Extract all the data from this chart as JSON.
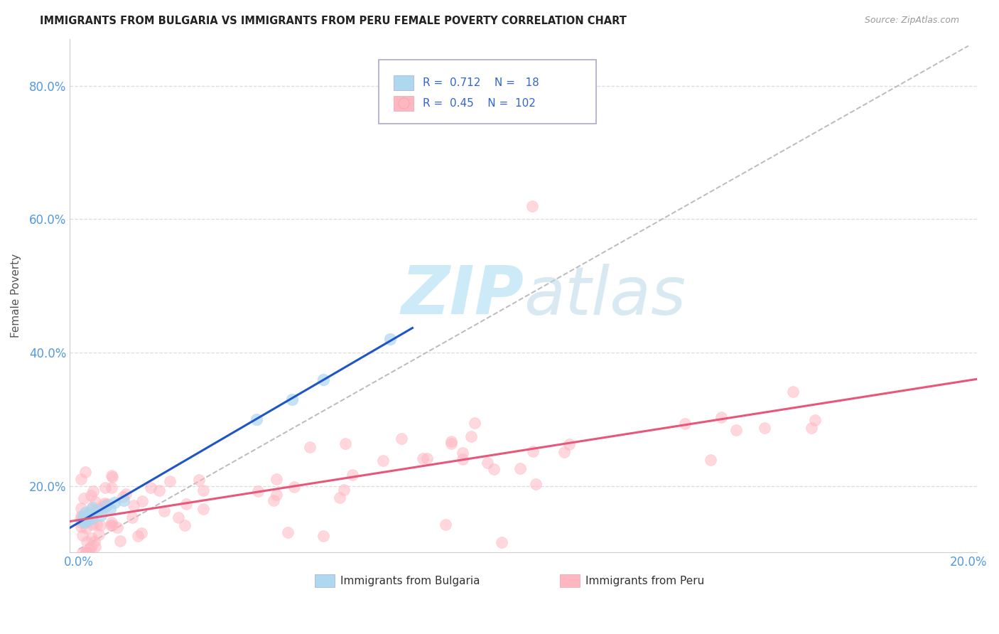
{
  "title": "IMMIGRANTS FROM BULGARIA VS IMMIGRANTS FROM PERU FEMALE POVERTY CORRELATION CHART",
  "source": "Source: ZipAtlas.com",
  "ylabel": "Female Poverty",
  "xlabel_bulgaria": "Immigrants from Bulgaria",
  "xlabel_peru": "Immigrants from Peru",
  "R_bulgaria": 0.712,
  "N_bulgaria": 18,
  "R_peru": 0.45,
  "N_peru": 102,
  "xlim": [
    -0.002,
    0.202
  ],
  "ylim": [
    0.1,
    0.87
  ],
  "yticks": [
    0.2,
    0.4,
    0.6,
    0.8
  ],
  "ytick_labels": [
    "20.0%",
    "40.0%",
    "60.0%",
    "80.0%"
  ],
  "xticks": [
    0.0,
    0.05,
    0.1,
    0.15,
    0.2
  ],
  "xtick_labels": [
    "0.0%",
    "",
    "",
    "",
    "20.0%"
  ],
  "color_bulgaria": "#ADD8F0",
  "color_peru": "#FFB6C1",
  "line_color_bulgaria": "#1E56C8",
  "line_color_peru": "#E8567A",
  "background_color": "#FFFFFF",
  "grid_color": "#DDDDDD",
  "title_color": "#222222",
  "axis_label_color": "#555555",
  "tick_color": "#5599DD",
  "diag_color": "#BBBBBB",
  "watermark_color": "#C8E8F8",
  "legend_text_color": "#3366CC"
}
